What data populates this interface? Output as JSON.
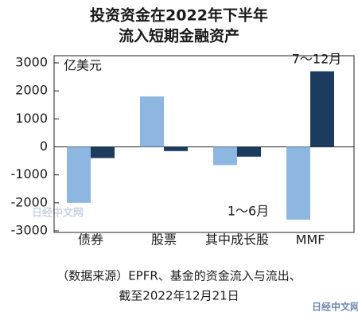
{
  "chart_data": {
    "type": "bar",
    "title": [
      "投资资金在2022年下半年",
      "流入短期金融资产"
    ],
    "unit_label": "亿美元",
    "categories": [
      "债券",
      "股票",
      "其中成长股",
      "MMF"
    ],
    "series": [
      {
        "name": "1～6月",
        "color": "#8db6e0",
        "values": [
          -2000,
          1800,
          -650,
          -2600
        ]
      },
      {
        "name": "7～12月",
        "color": "#1c3b5e",
        "values": [
          -400,
          -150,
          -350,
          2700
        ]
      }
    ],
    "ylim": [
      -3000,
      3000
    ],
    "yticks": [
      -3000,
      -2000,
      -1000,
      0,
      1000,
      2000,
      3000
    ],
    "source_note": [
      "（数据来源）EPFR、基金的资金流入与流出、",
      "截至2022年12月21日"
    ],
    "watermarks": [
      "日经中文网",
      "日经中文网"
    ]
  }
}
